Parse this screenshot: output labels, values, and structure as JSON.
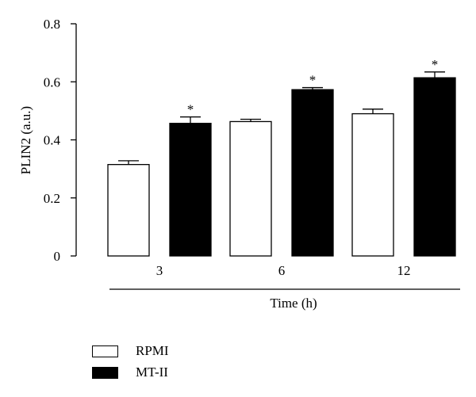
{
  "chart_data": {
    "type": "bar",
    "categories": [
      "3",
      "6",
      "12"
    ],
    "xlabel": "Time (h)",
    "ylabel": "PLIN2 (a.u.)",
    "ylim": [
      0,
      0.8
    ],
    "yticks": [
      "0",
      "0.2",
      "0.4",
      "0.6",
      "0.8"
    ],
    "series": [
      {
        "name": "RPMI",
        "values": [
          0.315,
          0.463,
          0.49
        ],
        "errors": [
          0.013,
          0.008,
          0.016
        ],
        "color": "#ffffff",
        "significant": [
          false,
          false,
          false
        ]
      },
      {
        "name": "MT-II",
        "values": [
          0.457,
          0.573,
          0.614
        ],
        "errors": [
          0.022,
          0.007,
          0.02
        ],
        "color": "#000000",
        "significant": [
          true,
          true,
          true
        ]
      }
    ],
    "significance_marker": "*",
    "grid": false,
    "legend_position": "bottom-left"
  }
}
